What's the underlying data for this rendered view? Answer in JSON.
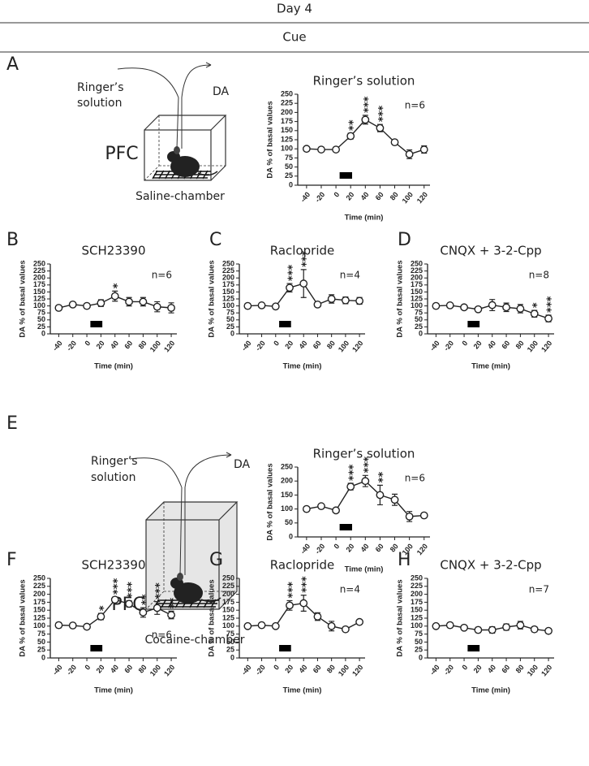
{
  "header": {
    "title": "Day 4",
    "subtitle": "Cue"
  },
  "diagrams": [
    {
      "inlet": [
        "Ringer’s",
        "solution"
      ],
      "outlet": "DA",
      "region": "PFC",
      "chamber": "Saline-chamber"
    },
    {
      "inlet": [
        "Ringer’s",
        "solution"
      ],
      "outlet": "DA",
      "region": "PFC",
      "chamber": "Cocaine-chamber"
    }
  ],
  "chart_data": [
    {
      "type": "line",
      "panel": "A",
      "title": "Ringer’s solution",
      "xlabel": "Time (min)",
      "ylabel": "DA % of basal values",
      "x": [
        -40,
        -20,
        0,
        20,
        40,
        60,
        80,
        100,
        120
      ],
      "xlim": [
        -52,
        128
      ],
      "xticks": [
        -40,
        -20,
        0,
        20,
        40,
        60,
        80,
        100,
        120
      ],
      "ylim": [
        0,
        250
      ],
      "yticks": [
        0,
        25,
        50,
        75,
        100,
        125,
        150,
        175,
        200,
        225,
        250
      ],
      "cue_bar": [
        5,
        22
      ],
      "series": [
        {
          "color": "#222222",
          "values": [
            100,
            98,
            98,
            135,
            180,
            157,
            118,
            85,
            98
          ],
          "errors": [
            3,
            3,
            3,
            8,
            12,
            10,
            5,
            12,
            10
          ]
        }
      ],
      "annotations": [
        {
          "x": 20,
          "text": "**"
        },
        {
          "x": 40,
          "text": "***"
        },
        {
          "x": 60,
          "text": "***"
        }
      ],
      "n_label": "n=6",
      "n_label_corner": "top right"
    },
    {
      "type": "line",
      "panel": "B",
      "title": "SCH23390",
      "xlabel": "Time (min)",
      "ylabel": "DA % of basal values",
      "x": [
        -40,
        -20,
        0,
        20,
        40,
        60,
        80,
        100,
        120
      ],
      "xlim": [
        -52,
        128
      ],
      "xticks": [
        -40,
        -20,
        0,
        20,
        40,
        60,
        80,
        100,
        120
      ],
      "ylim": [
        0,
        250
      ],
      "yticks": [
        0,
        25,
        50,
        75,
        100,
        125,
        150,
        175,
        200,
        225,
        250
      ],
      "cue_bar": [
        5,
        22
      ],
      "series": [
        {
          "color": "#222222",
          "values": [
            93,
            105,
            100,
            110,
            135,
            115,
            115,
            97,
            93
          ],
          "errors": [
            4,
            4,
            4,
            12,
            18,
            15,
            15,
            18,
            18
          ]
        }
      ],
      "annotations": [
        {
          "x": 40,
          "text": "*"
        }
      ],
      "n_label": "n=6",
      "n_label_corner": "top right"
    },
    {
      "type": "line",
      "panel": "C",
      "title": "Raclopride",
      "xlabel": "Time (min)",
      "ylabel": "DA % of basal values",
      "x": [
        -40,
        -20,
        0,
        20,
        40,
        60,
        80,
        100,
        120
      ],
      "xlim": [
        -52,
        128
      ],
      "xticks": [
        -40,
        -20,
        0,
        20,
        40,
        60,
        80,
        100,
        120
      ],
      "ylim": [
        0,
        250
      ],
      "yticks": [
        0,
        25,
        50,
        75,
        100,
        125,
        150,
        175,
        200,
        225,
        250
      ],
      "cue_bar": [
        5,
        22
      ],
      "series": [
        {
          "color": "#222222",
          "values": [
            100,
            102,
            98,
            165,
            180,
            105,
            125,
            120,
            118
          ],
          "errors": [
            3,
            3,
            3,
            15,
            50,
            5,
            15,
            12,
            12
          ]
        }
      ],
      "annotations": [
        {
          "x": 20,
          "text": "***"
        },
        {
          "x": 40,
          "text": "***"
        }
      ],
      "n_label": "n=4",
      "n_label_corner": "top right"
    },
    {
      "type": "line",
      "panel": "D",
      "title": "CNQX + 3-2-Cpp",
      "xlabel": "Time (min)",
      "ylabel": "DA % of basal values",
      "x": [
        -40,
        -20,
        0,
        20,
        40,
        60,
        80,
        100,
        120
      ],
      "xlim": [
        -52,
        128
      ],
      "xticks": [
        -40,
        -20,
        0,
        20,
        40,
        60,
        80,
        100,
        120
      ],
      "ylim": [
        0,
        250
      ],
      "yticks": [
        0,
        25,
        50,
        75,
        100,
        125,
        150,
        175,
        200,
        225,
        250
      ],
      "cue_bar": [
        5,
        22
      ],
      "series": [
        {
          "color": "#222222",
          "values": [
            100,
            102,
            95,
            88,
            103,
            95,
            90,
            72,
            55
          ],
          "errors": [
            3,
            3,
            3,
            8,
            20,
            15,
            15,
            12,
            12
          ]
        }
      ],
      "annotations": [
        {
          "x": 100,
          "text": "*"
        },
        {
          "x": 120,
          "text": "***"
        }
      ],
      "n_label": "n=8",
      "n_label_corner": "top right"
    },
    {
      "type": "line",
      "panel": "E",
      "title": "Ringer’s solution",
      "xlabel": "Time (min)",
      "ylabel": "DA % of basal values",
      "x": [
        -40,
        -20,
        0,
        20,
        40,
        60,
        80,
        100,
        120
      ],
      "xlim": [
        -52,
        128
      ],
      "xticks": [
        -40,
        -20,
        0,
        20,
        40,
        60,
        80,
        100,
        120
      ],
      "ylim": [
        0,
        250
      ],
      "yticks": [
        0,
        50,
        100,
        150,
        200,
        250
      ],
      "cue_bar": [
        5,
        22
      ],
      "series": [
        {
          "color": "#222222",
          "values": [
            100,
            110,
            95,
            180,
            200,
            150,
            133,
            73,
            77
          ],
          "errors": [
            3,
            3,
            3,
            12,
            20,
            35,
            20,
            18,
            8
          ]
        }
      ],
      "annotations": [
        {
          "x": 20,
          "text": "***"
        },
        {
          "x": 40,
          "text": "***"
        },
        {
          "x": 60,
          "text": "**"
        }
      ],
      "n_label": "n=6",
      "n_label_corner": "top right"
    },
    {
      "type": "line",
      "panel": "F",
      "title": "SCH23390",
      "xlabel": "Time (min)",
      "ylabel": "DA % of basal values",
      "x": [
        -40,
        -20,
        0,
        20,
        40,
        60,
        80,
        100,
        120
      ],
      "xlim": [
        -52,
        128
      ],
      "xticks": [
        -40,
        -20,
        0,
        20,
        40,
        60,
        80,
        100,
        120
      ],
      "ylim": [
        0,
        250
      ],
      "yticks": [
        0,
        25,
        50,
        75,
        100,
        125,
        150,
        175,
        200,
        225,
        250
      ],
      "cue_bar": [
        5,
        22
      ],
      "series": [
        {
          "color": "#222222",
          "values": [
            103,
            102,
            98,
            130,
            183,
            170,
            143,
            157,
            135
          ],
          "errors": [
            8,
            4,
            3,
            10,
            8,
            10,
            15,
            20,
            12
          ]
        }
      ],
      "annotations": [
        {
          "x": 20,
          "text": "*"
        },
        {
          "x": 40,
          "text": "***"
        },
        {
          "x": 60,
          "text": "***"
        },
        {
          "x": 80,
          "text": "**"
        },
        {
          "x": 100,
          "text": "***"
        },
        {
          "x": 120,
          "text": "**"
        }
      ],
      "n_label": "n=6",
      "n_label_corner": "bottom right"
    },
    {
      "type": "line",
      "panel": "G",
      "title": "Raclopride",
      "xlabel": "Time (min)",
      "ylabel": "DA % of basal values",
      "x": [
        -40,
        -20,
        0,
        20,
        40,
        60,
        80,
        100,
        120
      ],
      "xlim": [
        -52,
        128
      ],
      "xticks": [
        -40,
        -20,
        0,
        20,
        40,
        60,
        80,
        100,
        120
      ],
      "ylim": [
        0,
        250
      ],
      "yticks": [
        0,
        25,
        50,
        75,
        100,
        125,
        150,
        175,
        200,
        225,
        250
      ],
      "cue_bar": [
        5,
        22
      ],
      "series": [
        {
          "color": "#222222",
          "values": [
            100,
            103,
            100,
            165,
            172,
            130,
            100,
            90,
            113
          ],
          "errors": [
            3,
            3,
            3,
            15,
            25,
            12,
            15,
            5,
            5
          ]
        }
      ],
      "annotations": [
        {
          "x": 20,
          "text": "***"
        },
        {
          "x": 40,
          "text": "***"
        }
      ],
      "n_label": "n=4",
      "n_label_corner": "top right"
    },
    {
      "type": "line",
      "panel": "H",
      "title": "CNQX + 3-2-Cpp",
      "xlabel": "Time (min)",
      "ylabel": "DA % of basal values",
      "x": [
        -40,
        -20,
        0,
        20,
        40,
        60,
        80,
        100,
        120
      ],
      "xlim": [
        -52,
        128
      ],
      "xticks": [
        -40,
        -20,
        0,
        20,
        40,
        60,
        80,
        100,
        120
      ],
      "ylim": [
        0,
        250
      ],
      "yticks": [
        0,
        25,
        50,
        75,
        100,
        125,
        150,
        175,
        200,
        225,
        250
      ],
      "cue_bar": [
        5,
        22
      ],
      "series": [
        {
          "color": "#222222",
          "values": [
            100,
            103,
            95,
            88,
            88,
            97,
            103,
            90,
            85
          ],
          "errors": [
            3,
            3,
            3,
            8,
            10,
            10,
            12,
            8,
            8
          ]
        }
      ],
      "annotations": [],
      "n_label": "n=7",
      "n_label_corner": "top right"
    }
  ]
}
